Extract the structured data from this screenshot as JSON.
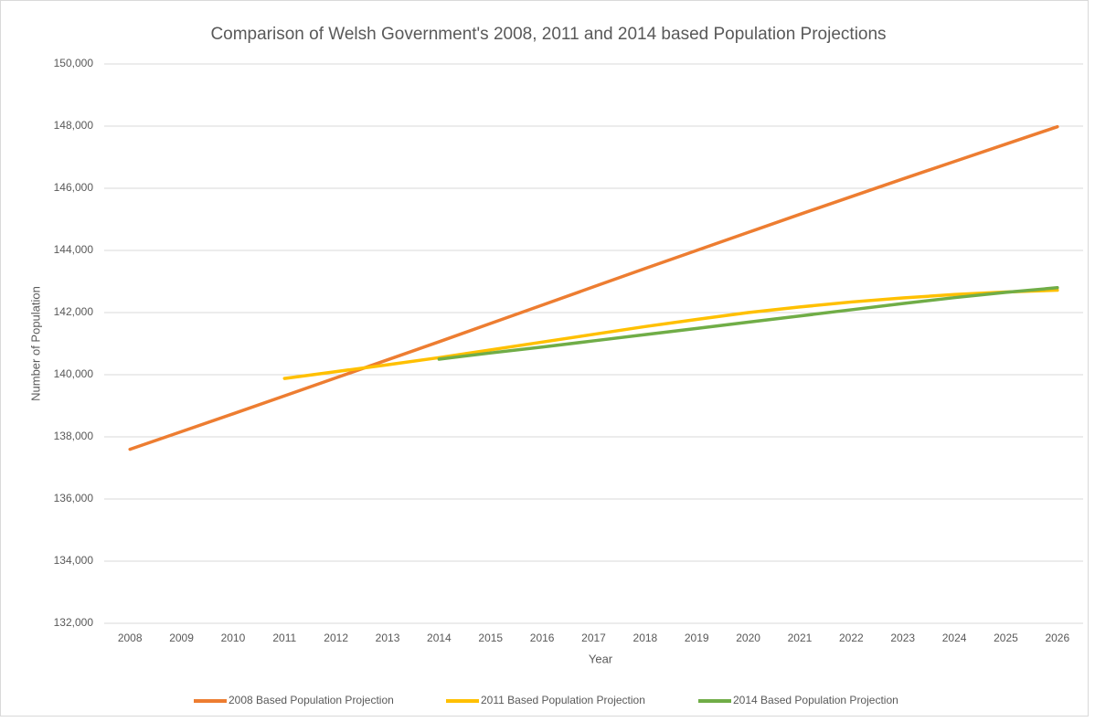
{
  "chart_data": {
    "type": "line",
    "title": "Comparison of Welsh Government's 2008, 2011 and 2014 based Population Projections",
    "x_label": "Year",
    "y_label": "Number of Population",
    "categories": [
      "2008",
      "2009",
      "2010",
      "2011",
      "2012",
      "2013",
      "2014",
      "2015",
      "2016",
      "2017",
      "2018",
      "2019",
      "2020",
      "2021",
      "2022",
      "2023",
      "2024",
      "2025",
      "2026"
    ],
    "series": [
      {
        "name": "2008 Based Population Projection",
        "color": "#ed7d31",
        "values": [
          137600,
          138170,
          138740,
          139320,
          139900,
          140480,
          141060,
          141650,
          142240,
          142830,
          143420,
          144000,
          144580,
          145160,
          145730,
          146300,
          146860,
          147420,
          147980
        ]
      },
      {
        "name": "2011 Based Population Projection",
        "color": "#ffc000",
        "values": [
          null,
          null,
          null,
          139880,
          140100,
          140320,
          140550,
          140800,
          141050,
          141300,
          141550,
          141780,
          142000,
          142180,
          142340,
          142470,
          142580,
          142660,
          142720
        ]
      },
      {
        "name": "2014 Based Population Projection",
        "color": "#70ad47",
        "values": [
          null,
          null,
          null,
          null,
          null,
          null,
          140500,
          140700,
          140890,
          141090,
          141290,
          141490,
          141690,
          141890,
          142090,
          142290,
          142480,
          142650,
          142800
        ]
      }
    ],
    "ylim": [
      132000,
      150000
    ],
    "yticks": [
      {
        "value": 132000,
        "label": "132,000"
      },
      {
        "value": 134000,
        "label": "134,000"
      },
      {
        "value": 136000,
        "label": "136,000"
      },
      {
        "value": 138000,
        "label": "138,000"
      },
      {
        "value": 140000,
        "label": "140,000"
      },
      {
        "value": 142000,
        "label": "142,000"
      },
      {
        "value": 144000,
        "label": "144,000"
      },
      {
        "value": 146000,
        "label": "146,000"
      },
      {
        "value": 148000,
        "label": "148,000"
      },
      {
        "value": 150000,
        "label": "150,000"
      }
    ],
    "grid": true,
    "legend": "bottom"
  }
}
